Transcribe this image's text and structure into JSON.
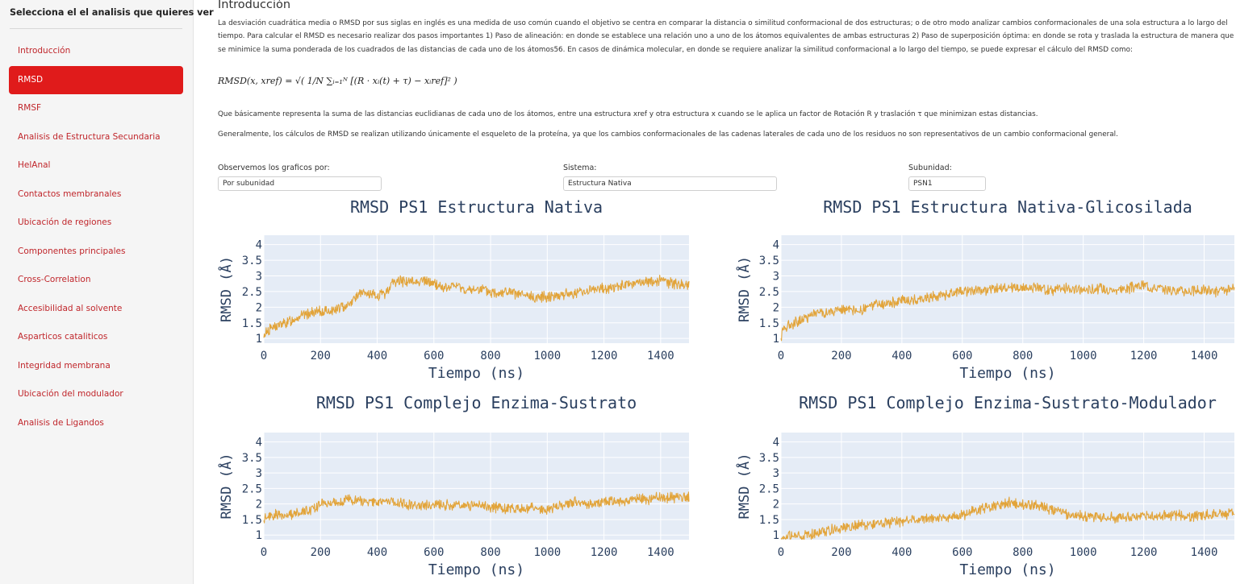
{
  "sidebar": {
    "title": "Selecciona el el analisis que quieres ver",
    "items": [
      {
        "label": "Introducción",
        "active": false
      },
      {
        "label": "RMSD",
        "active": true
      },
      {
        "label": "RMSF",
        "active": false
      },
      {
        "label": "Analisis de Estructura Secundaria",
        "active": false
      },
      {
        "label": "HelAnal",
        "active": false
      },
      {
        "label": "Contactos membranales",
        "active": false
      },
      {
        "label": "Ubicación de regiones",
        "active": false
      },
      {
        "label": "Componentes principales",
        "active": false
      },
      {
        "label": "Cross-Correlation",
        "active": false
      },
      {
        "label": "Accesibilidad al solvente",
        "active": false
      },
      {
        "label": "Asparticos cataliticos",
        "active": false
      },
      {
        "label": "Integridad membrana",
        "active": false
      },
      {
        "label": "Ubicación del modulador",
        "active": false
      },
      {
        "label": "Analisis de Ligandos",
        "active": false
      }
    ]
  },
  "main": {
    "title": "Introducción",
    "paragraph1": "La desviación cuadrática media o RMSD por sus siglas en inglés es una medida de uso común cuando el objetivo se centra en comparar la distancia o similitud conformacional de dos estructuras; o de otro modo analizar cambios conformacionales de una sola estructura a lo largo del tiempo. Para calcular el RMSD es necesario realizar dos pasos importantes 1) Paso de alineación: en donde se establece una relación uno a uno de los átomos equivalentes de ambas estructuras 2) Paso de superposición óptima: en donde se rota y traslada la estructura de manera que se minimice la suma ponderada de los cuadrados de las distancias de cada uno de los átomos56. En casos de dinámica molecular, en donde se requiere analizar la similitud conformacional a lo largo del tiempo, se puede expresar el cálculo del RMSD como:",
    "formula": "RMSD(x, xref) = √( 1/N ∑ᵢ₌₁ᴺ [(R · xᵢ(t) + τ) − xᵢref]² )",
    "paragraph2": "Que básicamente representa la suma de las distancias euclidianas de cada uno de los átomos, entre una estructura xref y otra estructura x cuando se le aplica un factor de Rotación R y traslación τ que minimizan estas distancias.",
    "paragraph3": "Generalmente, los cálculos de RMSD se realizan utilizando únicamente el esqueleto de la proteína, ya que los cambios conformacionales de las cadenas laterales de cada uno de los residuos no son representativos de un cambio conformacional general.",
    "filters": {
      "view_by": {
        "label": "Observemos los graficos por:",
        "value": "Por subunidad"
      },
      "system": {
        "label": "Sistema:",
        "value": "Estructura Nativa"
      },
      "subunit": {
        "label": "Subunidad:",
        "value": "PSN1"
      }
    }
  },
  "colors": {
    "line": "#e2a43a",
    "plot_bg": "#e5ecf6",
    "grid": "#ffffff",
    "accent": "#e01b1b",
    "link": "#c0262b"
  },
  "chart_data": [
    {
      "type": "line",
      "title": "RMSD PS1 Estructura Nativa",
      "xlabel": "Tiempo (ns)",
      "ylabel": "RMSD (Å)",
      "xlim": [
        0,
        1500
      ],
      "ylim": [
        0.85,
        4.3
      ],
      "xticks": [
        0,
        200,
        400,
        600,
        800,
        1000,
        1200,
        1400
      ],
      "yticks": [
        1,
        1.5,
        2,
        2.5,
        3,
        3.5,
        4
      ],
      "series": [
        {
          "x": [
            0,
            5,
            30,
            80,
            120,
            160,
            200,
            250,
            300,
            320,
            340,
            370,
            400,
            430,
            450,
            480,
            520,
            560,
            600,
            640,
            680,
            720,
            760,
            800,
            850,
            900,
            950,
            1000,
            1050,
            1100,
            1150,
            1200,
            1250,
            1300,
            1350,
            1400,
            1450,
            1500
          ],
          "y": [
            0.95,
            1.2,
            1.35,
            1.5,
            1.7,
            1.8,
            1.85,
            1.9,
            2.1,
            2.3,
            2.45,
            2.4,
            2.35,
            2.45,
            2.75,
            2.85,
            2.8,
            2.85,
            2.75,
            2.6,
            2.7,
            2.5,
            2.6,
            2.45,
            2.5,
            2.4,
            2.3,
            2.35,
            2.4,
            2.45,
            2.55,
            2.6,
            2.65,
            2.75,
            2.8,
            2.85,
            2.75,
            2.7
          ]
        }
      ]
    },
    {
      "type": "line",
      "title": "RMSD PS1 Estructura Nativa-Glicosilada",
      "xlabel": "Tiempo (ns)",
      "ylabel": "RMSD (Å)",
      "xlim": [
        0,
        1500
      ],
      "ylim": [
        0.85,
        4.3
      ],
      "xticks": [
        0,
        200,
        400,
        600,
        800,
        1000,
        1200,
        1400
      ],
      "yticks": [
        1,
        1.5,
        2,
        2.5,
        3,
        3.5,
        4
      ],
      "series": [
        {
          "x": [
            0,
            5,
            30,
            80,
            120,
            160,
            200,
            250,
            300,
            350,
            400,
            450,
            500,
            550,
            600,
            650,
            700,
            750,
            800,
            850,
            900,
            950,
            1000,
            1050,
            1100,
            1150,
            1200,
            1250,
            1300,
            1350,
            1400,
            1450,
            1500
          ],
          "y": [
            0.95,
            1.3,
            1.45,
            1.65,
            1.85,
            1.8,
            1.95,
            1.85,
            2.05,
            2.1,
            2.2,
            2.25,
            2.35,
            2.4,
            2.5,
            2.55,
            2.55,
            2.6,
            2.65,
            2.6,
            2.55,
            2.6,
            2.55,
            2.6,
            2.55,
            2.6,
            2.7,
            2.6,
            2.55,
            2.5,
            2.55,
            2.5,
            2.55
          ]
        }
      ]
    },
    {
      "type": "line",
      "title": "RMSD PS1 Complejo Enzima-Sustrato",
      "xlabel": "Tiempo (ns)",
      "ylabel": "RMSD (Å)",
      "xlim": [
        0,
        1500
      ],
      "ylim": [
        0.85,
        4.3
      ],
      "xticks": [
        0,
        200,
        400,
        600,
        800,
        1000,
        1200,
        1400
      ],
      "yticks": [
        1,
        1.5,
        2,
        2.5,
        3,
        3.5,
        4
      ],
      "series": [
        {
          "x": [
            0,
            5,
            50,
            100,
            150,
            200,
            250,
            300,
            350,
            400,
            450,
            500,
            550,
            600,
            650,
            700,
            750,
            800,
            850,
            900,
            950,
            1000,
            1050,
            1100,
            1150,
            1200,
            1250,
            1300,
            1350,
            1400,
            1450,
            1500
          ],
          "y": [
            1.45,
            1.6,
            1.65,
            1.7,
            1.75,
            2.0,
            2.05,
            2.15,
            2.1,
            2.05,
            2.1,
            2.0,
            1.95,
            2.0,
            1.95,
            1.95,
            2.0,
            1.9,
            1.85,
            1.9,
            1.85,
            1.8,
            1.95,
            2.05,
            2.0,
            2.05,
            2.1,
            2.15,
            2.15,
            2.2,
            2.2,
            2.2
          ]
        }
      ]
    },
    {
      "type": "line",
      "title": "RMSD PS1 Complejo Enzima-Sustrato-Modulador",
      "xlabel": "Tiempo (ns)",
      "ylabel": "RMSD (Å)",
      "xlim": [
        0,
        1500
      ],
      "ylim": [
        0.85,
        4.3
      ],
      "xticks": [
        0,
        200,
        400,
        600,
        800,
        1000,
        1200,
        1400
      ],
      "yticks": [
        1,
        1.5,
        2,
        2.5,
        3,
        3.5,
        4
      ],
      "series": [
        {
          "x": [
            0,
            5,
            50,
            100,
            150,
            200,
            250,
            300,
            350,
            400,
            450,
            500,
            550,
            600,
            650,
            700,
            750,
            800,
            850,
            900,
            950,
            1000,
            1050,
            1100,
            1150,
            1200,
            1250,
            1300,
            1350,
            1400,
            1450,
            1500
          ],
          "y": [
            0.9,
            0.95,
            0.95,
            1.0,
            1.15,
            1.2,
            1.3,
            1.35,
            1.4,
            1.45,
            1.5,
            1.55,
            1.55,
            1.65,
            1.8,
            1.9,
            2.05,
            1.95,
            1.95,
            1.8,
            1.65,
            1.6,
            1.6,
            1.55,
            1.6,
            1.6,
            1.6,
            1.65,
            1.6,
            1.65,
            1.7,
            1.7
          ]
        }
      ]
    }
  ]
}
